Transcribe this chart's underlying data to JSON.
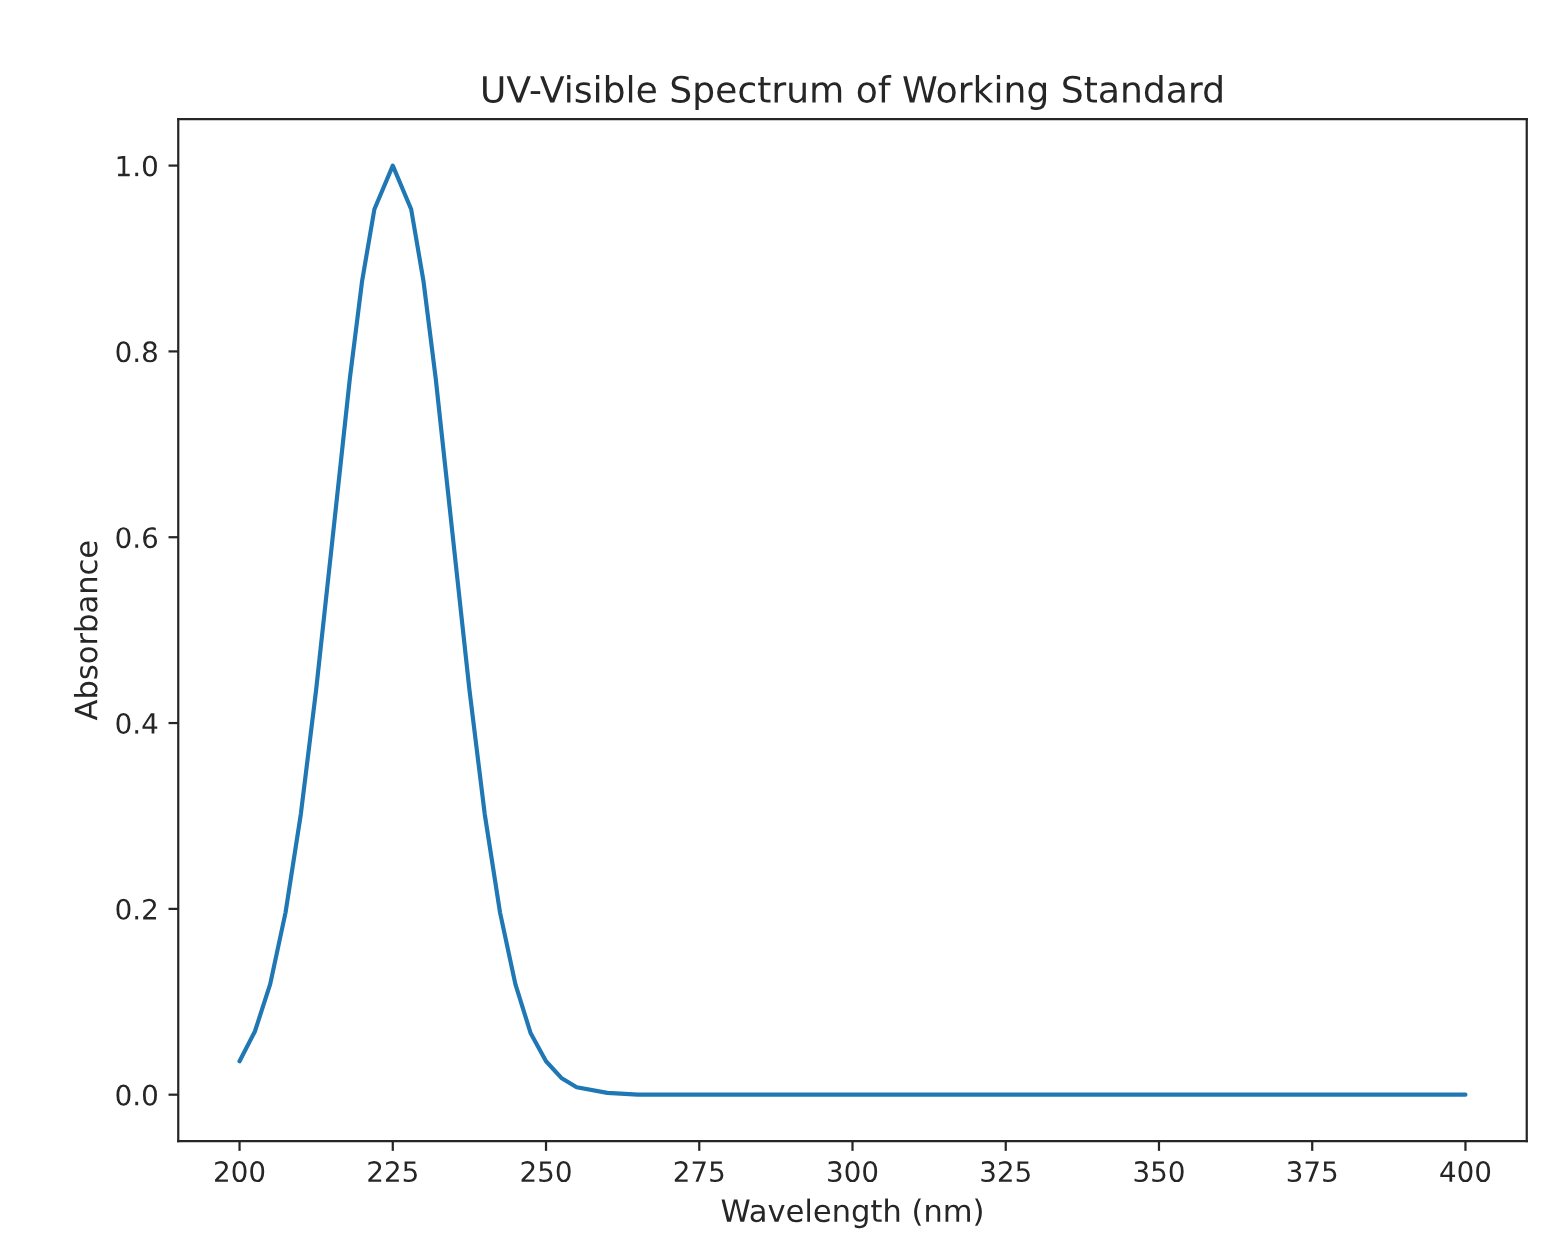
{
  "chart_data": {
    "type": "line",
    "title": "UV-Visible Spectrum of Working Standard",
    "xlabel": "Wavelength (nm)",
    "ylabel": "Absorbance",
    "x": [
      200,
      202.5,
      205,
      207.5,
      210,
      212.5,
      215,
      218,
      220,
      222,
      225,
      228,
      230,
      232,
      235,
      237.5,
      240,
      242.5,
      245,
      247.5,
      250,
      252.5,
      255,
      260,
      265,
      275,
      300,
      350,
      400
    ],
    "series": [
      {
        "color": "#1f77b4",
        "values": [
          0.036,
          0.068,
          0.119,
          0.196,
          0.302,
          0.436,
          0.588,
          0.771,
          0.876,
          0.953,
          1.0,
          0.953,
          0.876,
          0.771,
          0.588,
          0.436,
          0.302,
          0.196,
          0.119,
          0.066,
          0.036,
          0.018,
          0.008,
          0.002,
          0.0,
          0.0,
          0.0,
          0.0,
          0.0
        ]
      }
    ],
    "xlim": [
      190,
      410
    ],
    "ylim": [
      -0.05,
      1.05
    ],
    "xticks": [
      200,
      225,
      250,
      275,
      300,
      325,
      350,
      375,
      400
    ],
    "yticks": [
      {
        "value": 0.0,
        "label": "0.0"
      },
      {
        "value": 0.2,
        "label": "0.2"
      },
      {
        "value": 0.4,
        "label": "0.4"
      },
      {
        "value": 0.6,
        "label": "0.6"
      },
      {
        "value": 0.8,
        "label": "0.8"
      },
      {
        "value": 1.0,
        "label": "1.0"
      }
    ],
    "grid": false,
    "legend": false
  }
}
